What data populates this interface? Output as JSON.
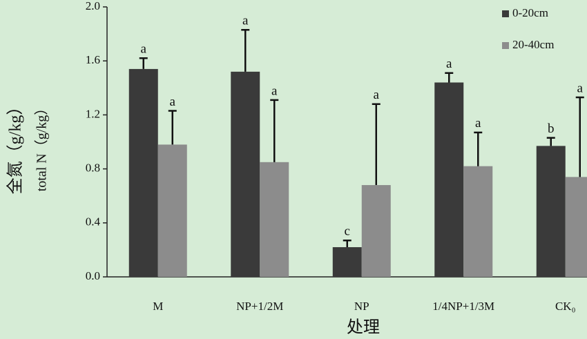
{
  "chart_data": {
    "type": "bar",
    "ylabel": [
      "全氮（g/kg）",
      "total N（g/kg）"
    ],
    "xlabel": "处理",
    "categories": [
      "M",
      "NP+1/2M",
      "NP",
      "1/4NP+1/3M",
      "CK₀"
    ],
    "series": [
      {
        "name": "0-20cm",
        "color": "#3a3a3a",
        "values": [
          1.54,
          1.52,
          0.22,
          1.44,
          0.97
        ],
        "errors": [
          0.08,
          0.31,
          0.05,
          0.07,
          0.06
        ],
        "letters": [
          "a",
          "a",
          "c",
          "a",
          "b"
        ]
      },
      {
        "name": "20-40cm",
        "color": "#8c8c8c",
        "values": [
          0.98,
          0.85,
          0.68,
          0.82,
          0.74
        ],
        "errors": [
          0.25,
          0.46,
          0.6,
          0.25,
          0.59
        ],
        "letters": [
          "a",
          "a",
          "a",
          "a",
          "a"
        ]
      }
    ],
    "ylim": [
      0,
      2.0
    ],
    "yticks": [
      {
        "value": 0,
        "label": "0.0"
      },
      0.4,
      0.8,
      1.2,
      1.6,
      {
        "value": 2.0,
        "label": "2.0"
      }
    ],
    "legend": "upper right"
  }
}
